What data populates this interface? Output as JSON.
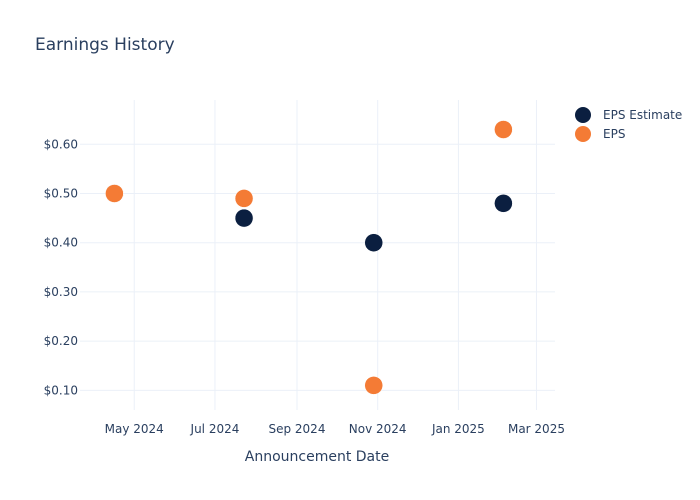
{
  "chart_data": {
    "type": "scatter",
    "title": "Earnings History",
    "xlabel": "Announcement Date",
    "ylabel": "",
    "x_axis_type": "date",
    "xlim": [
      "2024-03-21",
      "2025-03-15"
    ],
    "ylim": [
      0.06,
      0.69
    ],
    "x_ticks": [
      {
        "date": "2024-05-01",
        "label": "May 2024"
      },
      {
        "date": "2024-07-01",
        "label": "Jul 2024"
      },
      {
        "date": "2024-09-01",
        "label": "Sep 2024"
      },
      {
        "date": "2024-11-01",
        "label": "Nov 2024"
      },
      {
        "date": "2025-01-01",
        "label": "Jan 2025"
      },
      {
        "date": "2025-03-01",
        "label": "Mar 2025"
      }
    ],
    "y_ticks": [
      {
        "value": 0.1,
        "label": "$0.10"
      },
      {
        "value": 0.2,
        "label": "$0.20"
      },
      {
        "value": 0.3,
        "label": "$0.30"
      },
      {
        "value": 0.4,
        "label": "$0.40"
      },
      {
        "value": 0.5,
        "label": "$0.50"
      },
      {
        "value": 0.6,
        "label": "$0.60"
      }
    ],
    "grid": true,
    "legend_position": "top-right",
    "series": [
      {
        "name": "EPS Estimate",
        "color": "#0b1f40",
        "points": [
          {
            "x": "2024-04-16",
            "y": 0.5
          },
          {
            "x": "2024-07-23",
            "y": 0.45
          },
          {
            "x": "2024-10-29",
            "y": 0.4
          },
          {
            "x": "2025-02-04",
            "y": 0.48
          }
        ]
      },
      {
        "name": "EPS",
        "color": "#f47b35",
        "points": [
          {
            "x": "2024-04-16",
            "y": 0.5
          },
          {
            "x": "2024-07-23",
            "y": 0.49
          },
          {
            "x": "2024-10-29",
            "y": 0.11
          },
          {
            "x": "2025-02-04",
            "y": 0.63
          }
        ]
      }
    ]
  }
}
